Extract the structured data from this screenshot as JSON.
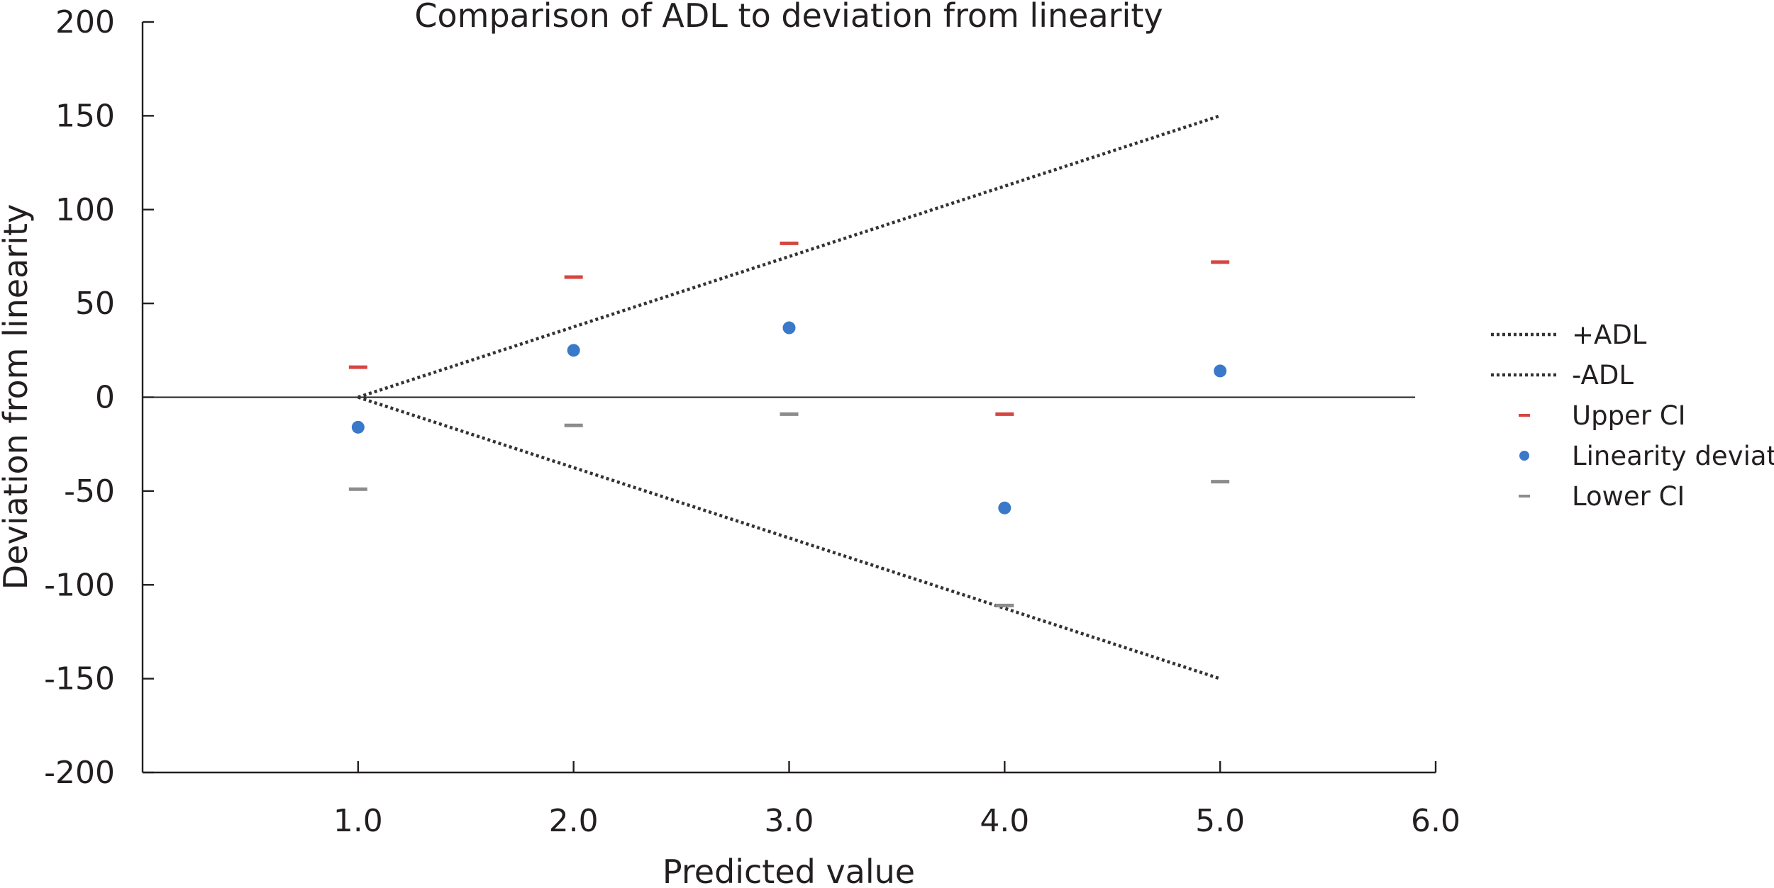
{
  "chart_data": {
    "type": "scatter",
    "title": "Comparison of ADL to deviation from linearity",
    "xlabel": "Predicted value",
    "ylabel": "Deviation from linearity",
    "xlim": [
      0,
      6
    ],
    "ylim": [
      -200,
      200
    ],
    "xticks": [
      "1.0",
      "2.0",
      "3.0",
      "4.0",
      "5.0",
      "6.0"
    ],
    "yticks": [
      "200",
      "150",
      "100",
      "50",
      "0",
      "-50",
      "-100",
      "-150",
      "-200"
    ],
    "legend_position": "right",
    "series": [
      {
        "name": "+ADL",
        "kind": "dotted-line",
        "color": "#333333",
        "x": [
          1,
          5
        ],
        "values": [
          0,
          150
        ]
      },
      {
        "name": "-ADL",
        "kind": "dotted-line",
        "color": "#333333",
        "x": [
          1,
          5
        ],
        "values": [
          0,
          -150
        ]
      },
      {
        "name": "Upper CI",
        "kind": "dash",
        "color": "#d64541",
        "x": [
          1,
          2,
          3,
          4,
          5
        ],
        "values": [
          16,
          64,
          82,
          -9,
          72
        ]
      },
      {
        "name": "Linearity deviation",
        "kind": "dot",
        "color": "#3a78c9",
        "x": [
          1,
          2,
          3,
          4,
          5
        ],
        "values": [
          -16,
          25,
          37,
          -59,
          14
        ]
      },
      {
        "name": "Lower CI",
        "kind": "dash",
        "color": "#8c8c8c",
        "x": [
          1,
          2,
          3,
          4,
          5
        ],
        "values": [
          -49,
          -15,
          -9,
          -111,
          -45
        ]
      }
    ]
  }
}
